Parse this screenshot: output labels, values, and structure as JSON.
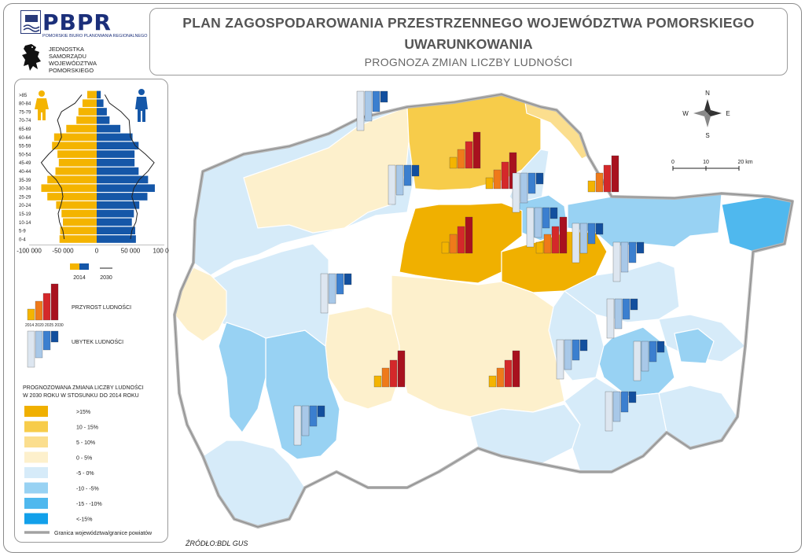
{
  "header": {
    "logo_text": "PBPR",
    "logo_subtitle": "POMORSKIE BIURO PLANOWANIA REGIONALNEGO",
    "emblem_caption": [
      "JEDNOSTKA",
      "SAMORZĄDU",
      "WOJEWÓDZTWA",
      "POMORSKIEGO"
    ],
    "title_line1": "PLAN ZAGOSPODAROWANIA PRZESTRZENNEGO WOJEWÓDZTWA POMORSKIEGO",
    "title_line2": "UWARUNKOWANIA",
    "title_line3": "PROGNOZA ZMIAN LICZBY LUDNOŚCI"
  },
  "pyramid": {
    "age_groups": [
      "0-4",
      "5-9",
      "10-14",
      "15-19",
      "20-24",
      "25-29",
      "30-34",
      "35-39",
      "40-44",
      "45-49",
      "50-54",
      "55-59",
      "60-64",
      "65-69",
      "70-74",
      "75-79",
      "80-84",
      ">85"
    ],
    "female_2014": [
      55000,
      54000,
      50000,
      52000,
      60000,
      73000,
      82000,
      73000,
      61000,
      56000,
      58000,
      66000,
      63000,
      45000,
      30000,
      27000,
      21000,
      14000
    ],
    "male_2014": [
      58000,
      57000,
      52000,
      55000,
      63000,
      75000,
      86000,
      76000,
      62000,
      56000,
      56000,
      62000,
      53000,
      35000,
      19000,
      15000,
      10000,
      6000
    ],
    "female_2030": [
      48000,
      50000,
      55000,
      57000,
      53000,
      50000,
      52000,
      60000,
      73000,
      82000,
      71000,
      58000,
      52000,
      54000,
      58000,
      52000,
      32000,
      22000
    ],
    "male_2030": [
      50000,
      52000,
      58000,
      60000,
      56000,
      52000,
      55000,
      63000,
      76000,
      85000,
      72000,
      57000,
      50000,
      49000,
      48000,
      36000,
      19000,
      12000
    ],
    "axis_ticks": [
      "-100 000",
      "-50 000",
      "0",
      "50 000",
      "100 000"
    ],
    "legend_2014": "2014",
    "legend_2030": "2030",
    "colors": {
      "female": "#f4b400",
      "male": "#1557a8",
      "line": "#222222"
    }
  },
  "bar_legend": {
    "growth_label": "PRZYROST LUDNOŚCI",
    "decline_label": "UBYTEK LUDNOŚCI",
    "years_label": "2014 2020 2025 2030",
    "growth_colors": [
      "#f4b400",
      "#ef7a1a",
      "#d4282a",
      "#a8111e"
    ],
    "decline_colors": [
      "#dde6f0",
      "#a8c8e8",
      "#3b7fcf",
      "#124f9e"
    ]
  },
  "choropleth_legend": {
    "title_line1": "PROGNOZOWANA ZMIANA LICZBY LUDNOŚCI",
    "title_line2": "W 2030 ROKU W STOSUNKU DO 2014 ROKU",
    "classes": [
      {
        "label": ">15%",
        "color": "#f0b000"
      },
      {
        "label": "10 - 15%",
        "color": "#f7cc4a"
      },
      {
        "label": "5 - 10%",
        "color": "#fbde8e"
      },
      {
        "label": "0 - 5%",
        "color": "#fdf0cc"
      },
      {
        "label": "-5 - 0%",
        "color": "#d6ebf9"
      },
      {
        "label": "-10 - -5%",
        "color": "#98d2f3"
      },
      {
        "label": "-15 - -10%",
        "color": "#4fb8ee"
      },
      {
        "label": "<-15%",
        "color": "#12a0ea"
      }
    ],
    "boundary_label": "Granica województwa/granice powiatów"
  },
  "map": {
    "compass": {
      "n": "N",
      "s": "S",
      "e": "E",
      "w": "W"
    },
    "scale": {
      "ticks": [
        "0",
        "10",
        "20 km"
      ]
    }
  },
  "source": "ŹRÓDŁO:BDL GUS"
}
